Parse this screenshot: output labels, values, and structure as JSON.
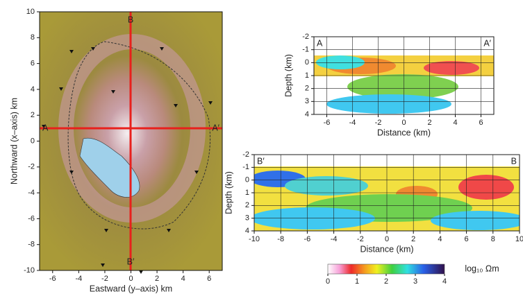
{
  "chart_data": [
    {
      "type": "map",
      "xlabel": "Eastward (y–axis) km",
      "ylabel": "Northward (x–axis) km",
      "xlim": [
        -7,
        7
      ],
      "ylim": [
        -10,
        10
      ],
      "xticks": [
        -6,
        -4,
        -2,
        0,
        2,
        4,
        6
      ],
      "yticks": [
        -10,
        -8,
        -6,
        -4,
        -2,
        0,
        2,
        4,
        6,
        8,
        10
      ],
      "profile_labels": [
        "A",
        "A′",
        "B",
        "B′"
      ],
      "grid": false
    },
    {
      "type": "section",
      "xlabel": "Distance (km)",
      "ylabel": "Depth (km)",
      "xlim": [
        -7,
        7
      ],
      "ylim": [
        4,
        -2
      ],
      "xticks": [
        -6,
        -4,
        -2,
        0,
        2,
        4,
        6
      ],
      "yticks": [
        -2,
        -1,
        0,
        1,
        2,
        3,
        4
      ],
      "profile_labels": [
        "A",
        "A′"
      ],
      "grid": true
    },
    {
      "type": "section",
      "xlabel": "Distance (km)",
      "ylabel": "Depth (km)",
      "xlim": [
        -10,
        10
      ],
      "ylim": [
        4,
        -2
      ],
      "xticks": [
        -10,
        -8,
        -6,
        -4,
        -2,
        0,
        2,
        4,
        6,
        8,
        10
      ],
      "yticks": [
        -2,
        -1,
        0,
        1,
        2,
        3,
        4
      ],
      "profile_labels": [
        "B′",
        "B"
      ],
      "grid": true
    },
    {
      "type": "colorbar",
      "label": "log₁₀ Ωm",
      "xlim": [
        0,
        4
      ],
      "xticks": [
        0,
        1,
        2,
        3,
        4
      ]
    }
  ]
}
